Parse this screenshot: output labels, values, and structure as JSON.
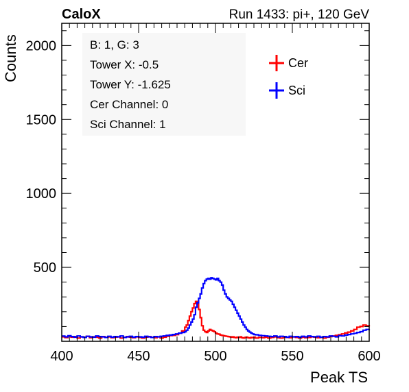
{
  "header": {
    "left": "CaloX",
    "right": "Run 1433: pi+, 120 GeV"
  },
  "info_box": {
    "lines": [
      "B: 1, G: 3",
      "Tower X: -0.5",
      "Tower Y: -1.625",
      "Cer Channel: 0",
      "Sci Channel: 1"
    ]
  },
  "chart_data": {
    "type": "line",
    "xlabel": "Peak TS",
    "ylabel": "Counts",
    "xlim": [
      400,
      600
    ],
    "ylim": [
      0,
      2150
    ],
    "x_ticks": [
      400,
      450,
      500,
      550,
      600
    ],
    "y_ticks": [
      500,
      1000,
      1500,
      2000
    ],
    "grid": false,
    "legend_placement": "top-right",
    "x": [
      400,
      402,
      404,
      406,
      408,
      410,
      412,
      414,
      416,
      418,
      420,
      422,
      424,
      426,
      428,
      430,
      432,
      434,
      436,
      438,
      440,
      442,
      444,
      446,
      448,
      450,
      452,
      454,
      456,
      458,
      460,
      462,
      464,
      466,
      468,
      470,
      472,
      474,
      476,
      478,
      480,
      481,
      482,
      483,
      484,
      485,
      486,
      487,
      488,
      489,
      490,
      491,
      492,
      493,
      494,
      495,
      496,
      497,
      498,
      499,
      500,
      501,
      502,
      503,
      504,
      505,
      506,
      507,
      508,
      509,
      510,
      511,
      512,
      513,
      514,
      515,
      516,
      517,
      518,
      519,
      520,
      521,
      522,
      523,
      524,
      525,
      526,
      528,
      530,
      532,
      534,
      536,
      538,
      540,
      542,
      544,
      546,
      548,
      550,
      552,
      554,
      556,
      558,
      560,
      562,
      564,
      566,
      568,
      570,
      572,
      574,
      576,
      578,
      580,
      582,
      584,
      586,
      588,
      590,
      592,
      594,
      596,
      598,
      600
    ],
    "series": [
      {
        "name": "Cer",
        "color": "#ff0000",
        "values": [
          30,
          25,
          35,
          28,
          32,
          22,
          30,
          26,
          34,
          24,
          30,
          28,
          22,
          32,
          26,
          30,
          24,
          28,
          30,
          22,
          26,
          32,
          28,
          24,
          30,
          26,
          22,
          28,
          32,
          26,
          24,
          30,
          22,
          28,
          34,
          38,
          40,
          45,
          55,
          70,
          95,
          110,
          140,
          170,
          200,
          225,
          255,
          270,
          250,
          215,
          160,
          105,
          75,
          65,
          60,
          70,
          80,
          75,
          70,
          65,
          55,
          50,
          48,
          42,
          40,
          38,
          35,
          34,
          32,
          30,
          28,
          30,
          26,
          24,
          28,
          26,
          30,
          24,
          22,
          26,
          28,
          24,
          22,
          26,
          24,
          28,
          22,
          26,
          24,
          28,
          22,
          26,
          30,
          24,
          22,
          28,
          26,
          24,
          30,
          26,
          22,
          28,
          24,
          26,
          30,
          28,
          24,
          26,
          22,
          28,
          32,
          36,
          40,
          44,
          50,
          56,
          62,
          70,
          80,
          95,
          100,
          110,
          105,
          100
        ]
      },
      {
        "name": "Sci",
        "color": "#0000ff",
        "values": [
          35,
          30,
          38,
          32,
          28,
          36,
          30,
          26,
          34,
          30,
          28,
          36,
          32,
          30,
          26,
          34,
          28,
          32,
          30,
          36,
          26,
          30,
          34,
          28,
          32,
          30,
          28,
          34,
          30,
          26,
          32,
          30,
          34,
          36,
          40,
          42,
          46,
          50,
          55,
          60,
          65,
          75,
          90,
          110,
          130,
          150,
          180,
          230,
          260,
          290,
          320,
          360,
          390,
          410,
          420,
          425,
          420,
          430,
          425,
          420,
          415,
          425,
          410,
          400,
          380,
          345,
          320,
          300,
          290,
          280,
          270,
          250,
          230,
          210,
          190,
          170,
          150,
          130,
          110,
          95,
          80,
          70,
          62,
          55,
          50,
          46,
          44,
          40,
          38,
          36,
          34,
          32,
          36,
          30,
          34,
          32,
          28,
          34,
          30,
          32,
          28,
          34,
          30,
          36,
          32,
          30,
          34,
          28,
          32,
          30,
          36,
          34,
          30,
          38,
          36,
          42,
          46,
          50,
          54,
          60,
          65,
          75,
          80,
          82
        ]
      }
    ]
  }
}
